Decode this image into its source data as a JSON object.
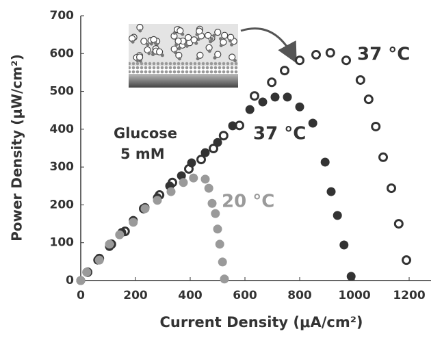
{
  "chart_data": {
    "type": "scatter",
    "x_label": "Current Density (μA/cm²)",
    "y_label": "Power Density (μW/cm²)",
    "xlim": [
      0,
      1200
    ],
    "xticks": [
      0,
      200,
      400,
      600,
      800,
      1000,
      1200
    ],
    "ylim": [
      0,
      700
    ],
    "yticks": [
      0,
      100,
      200,
      300,
      400,
      500,
      600,
      700
    ],
    "annotations": [
      "Glucose",
      "5 mM",
      "37 °C",
      "37 °C",
      "20 °C"
    ],
    "series": [
      {
        "marker": "open",
        "color": "#333333",
        "x": [
          25,
          68,
          112,
          162,
          230,
          288,
          335,
          395,
          440,
          485,
          522,
          580,
          635,
          698,
          745,
          800,
          860,
          912,
          970,
          1022,
          1052,
          1078,
          1105,
          1135,
          1162,
          1190
        ],
        "values": [
          22,
          58,
          96,
          130,
          190,
          226,
          259,
          295,
          320,
          349,
          383,
          410,
          488,
          524,
          555,
          582,
          597,
          602,
          582,
          530,
          479,
          407,
          326,
          244,
          150,
          54
        ]
      },
      {
        "marker": "filled",
        "color": "#333333",
        "x": [
          0,
          22,
          62,
          105,
          150,
          192,
          235,
          280,
          325,
          368,
          405,
          455,
          500,
          555,
          618,
          665,
          710,
          755,
          800,
          848,
          893,
          915,
          938,
          962,
          988
        ],
        "values": [
          0,
          22,
          54,
          90,
          127,
          159,
          193,
          219,
          250,
          277,
          311,
          338,
          365,
          409,
          452,
          472,
          485,
          485,
          459,
          416,
          313,
          235,
          172,
          94,
          11
        ]
      },
      {
        "marker": "filled",
        "color": "#9a9a9a",
        "x": [
          0,
          22,
          68,
          105,
          142,
          192,
          235,
          280,
          330,
          375,
          412,
          455,
          468,
          480,
          492,
          500,
          508,
          518,
          525
        ],
        "values": [
          0,
          22,
          54,
          96,
          121,
          154,
          190,
          212,
          235,
          259,
          271,
          268,
          244,
          204,
          177,
          136,
          96,
          49,
          4
        ]
      }
    ]
  }
}
